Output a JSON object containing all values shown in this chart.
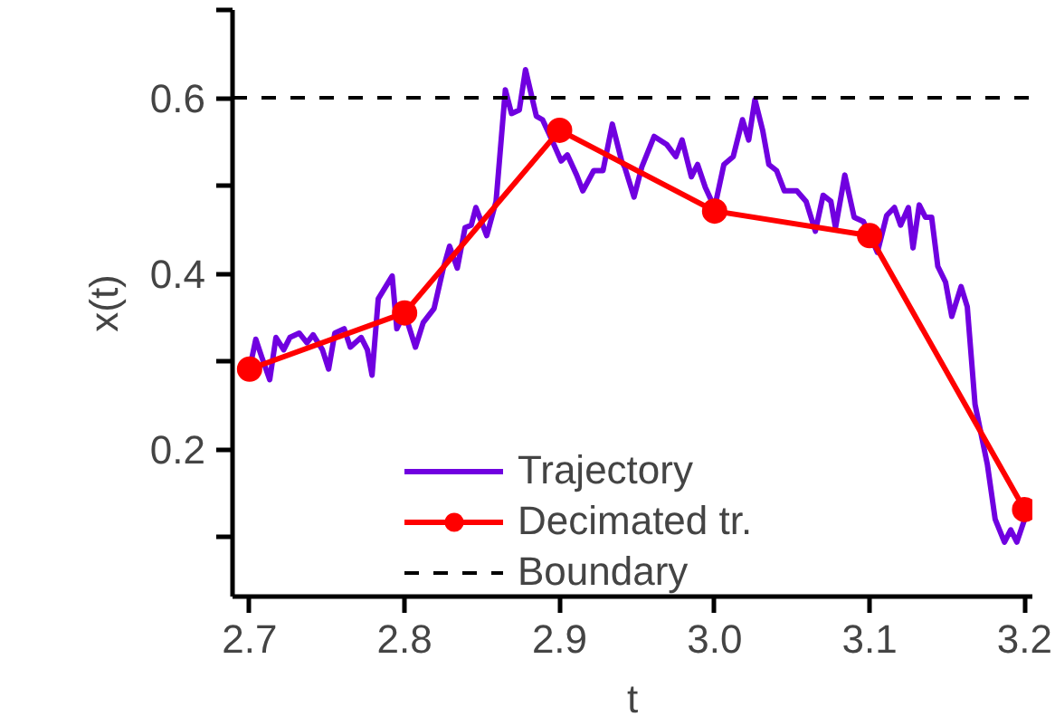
{
  "chart_data": {
    "type": "line",
    "xlabel": "t",
    "ylabel": "x(t)",
    "xlim": [
      2.689,
      3.205
    ],
    "ylim": [
      0.032,
      0.7
    ],
    "xticks": [
      {
        "value": 2.7,
        "label": "2.7"
      },
      {
        "value": 2.8,
        "label": "2.8"
      },
      {
        "value": 2.9,
        "label": "2.9"
      },
      {
        "value": 3.0,
        "label": "3.0"
      },
      {
        "value": 3.1,
        "label": "3.1"
      },
      {
        "value": 3.2,
        "label": "3.2"
      }
    ],
    "yticks": [
      {
        "value": 0.1,
        "label": null
      },
      {
        "value": 0.2,
        "label": "0.2"
      },
      {
        "value": 0.3,
        "label": null
      },
      {
        "value": 0.4,
        "label": "0.4"
      },
      {
        "value": 0.5,
        "label": null
      },
      {
        "value": 0.6,
        "label": "0.6"
      },
      {
        "value": 0.7,
        "label": null
      }
    ],
    "grid": false,
    "legend": "bottom",
    "ref_lines": [
      {
        "axis": "y",
        "value": 0.6,
        "label": "Boundary",
        "color": "#000000",
        "line_style": "dashed"
      }
    ],
    "series": [
      {
        "name": "Trajectory",
        "color": "#7000e0",
        "marker": "none",
        "x": [
          2.7,
          2.704,
          2.708,
          2.713,
          2.717,
          2.722,
          2.726,
          2.732,
          2.737,
          2.741,
          2.747,
          2.751,
          2.755,
          2.761,
          2.765,
          2.772,
          2.776,
          2.779,
          2.783,
          2.792,
          2.795,
          2.8,
          2.807,
          2.812,
          2.819,
          2.825,
          2.829,
          2.834,
          2.839,
          2.843,
          2.846,
          2.853,
          2.859,
          2.865,
          2.869,
          2.874,
          2.878,
          2.885,
          2.889,
          2.895,
          2.901,
          2.905,
          2.911,
          2.915,
          2.922,
          2.928,
          2.934,
          2.94,
          2.942,
          2.948,
          2.953,
          2.961,
          2.969,
          2.975,
          2.979,
          2.985,
          2.989,
          2.994,
          3.0,
          3.006,
          3.012,
          3.018,
          3.022,
          3.026,
          3.031,
          3.035,
          3.04,
          3.045,
          3.053,
          3.059,
          3.065,
          3.07,
          3.075,
          3.078,
          3.084,
          3.09,
          3.096,
          3.102,
          3.105,
          3.111,
          3.116,
          3.12,
          3.125,
          3.128,
          3.132,
          3.136,
          3.14,
          3.144,
          3.149,
          3.153,
          3.159,
          3.163,
          3.168,
          3.176,
          3.181,
          3.187,
          3.191,
          3.195,
          3.2
        ],
        "values": [
          0.291,
          0.325,
          0.304,
          0.279,
          0.327,
          0.313,
          0.327,
          0.332,
          0.321,
          0.33,
          0.313,
          0.291,
          0.332,
          0.337,
          0.316,
          0.327,
          0.313,
          0.284,
          0.371,
          0.397,
          0.337,
          0.355,
          0.316,
          0.344,
          0.36,
          0.406,
          0.431,
          0.406,
          0.452,
          0.455,
          0.475,
          0.443,
          0.482,
          0.609,
          0.582,
          0.586,
          0.632,
          0.579,
          0.575,
          0.552,
          0.528,
          0.535,
          0.512,
          0.494,
          0.517,
          0.517,
          0.57,
          0.528,
          0.521,
          0.487,
          0.521,
          0.556,
          0.547,
          0.533,
          0.552,
          0.51,
          0.524,
          0.498,
          0.475,
          0.524,
          0.533,
          0.575,
          0.552,
          0.598,
          0.563,
          0.524,
          0.517,
          0.494,
          0.494,
          0.482,
          0.448,
          0.489,
          0.482,
          0.452,
          0.512,
          0.464,
          0.459,
          0.436,
          0.424,
          0.466,
          0.475,
          0.455,
          0.475,
          0.429,
          0.478,
          0.464,
          0.464,
          0.408,
          0.39,
          0.351,
          0.385,
          0.362,
          0.251,
          0.182,
          0.12,
          0.094,
          0.108,
          0.094,
          0.12
        ]
      },
      {
        "name": "Decimated tr.",
        "color": "#ff0000",
        "marker": "circle",
        "x": [
          2.7,
          2.8,
          2.9,
          3.0,
          3.1,
          3.2
        ],
        "values": [
          0.291,
          0.355,
          0.563,
          0.471,
          0.443,
          0.131
        ]
      }
    ]
  }
}
